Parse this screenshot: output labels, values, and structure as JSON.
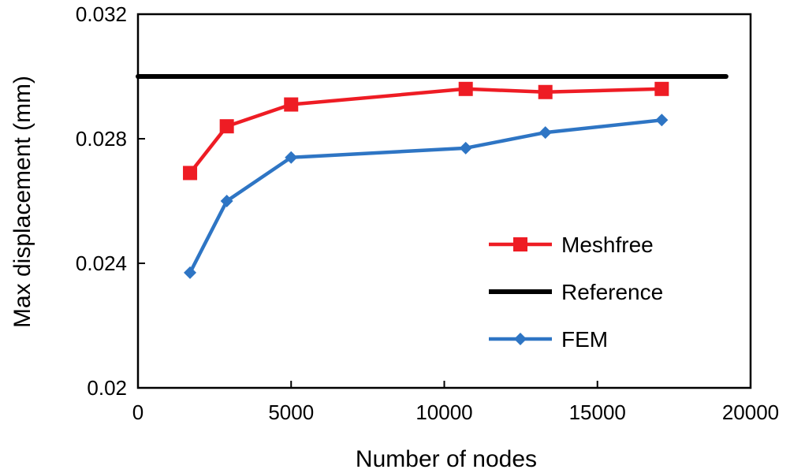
{
  "chart_data": {
    "type": "line",
    "xlabel": "Number  of nodes",
    "ylabel": "Max displacement  (mm)",
    "xlim": [
      0,
      20000
    ],
    "ylim": [
      0.02,
      0.032
    ],
    "x_ticks": [
      0,
      5000,
      10000,
      15000,
      20000
    ],
    "x_tick_labels": [
      "0",
      "5000",
      "10000",
      "15000",
      "20000"
    ],
    "y_ticks": [
      0.02,
      0.024,
      0.028,
      0.032
    ],
    "y_tick_labels": [
      "0.02",
      "0.024",
      "0.028",
      "0.032"
    ],
    "grid": false,
    "legend_position": "right",
    "series": [
      {
        "name": "Meshfree",
        "color": "#ee1c24",
        "marker": "square",
        "x": [
          1700,
          2900,
          5000,
          10700,
          13300,
          17100
        ],
        "y": [
          0.0269,
          0.0284,
          0.0291,
          0.0296,
          0.0295,
          0.0296
        ]
      },
      {
        "name": "Reference",
        "color": "#000000",
        "marker": "none",
        "x": [
          0,
          19200
        ],
        "y": [
          0.03,
          0.03
        ]
      },
      {
        "name": "FEM",
        "color": "#2e75c4",
        "marker": "diamond",
        "x": [
          1700,
          2900,
          5000,
          10700,
          13300,
          17100
        ],
        "y": [
          0.0237,
          0.026,
          0.0274,
          0.0277,
          0.0282,
          0.0286
        ]
      }
    ]
  }
}
